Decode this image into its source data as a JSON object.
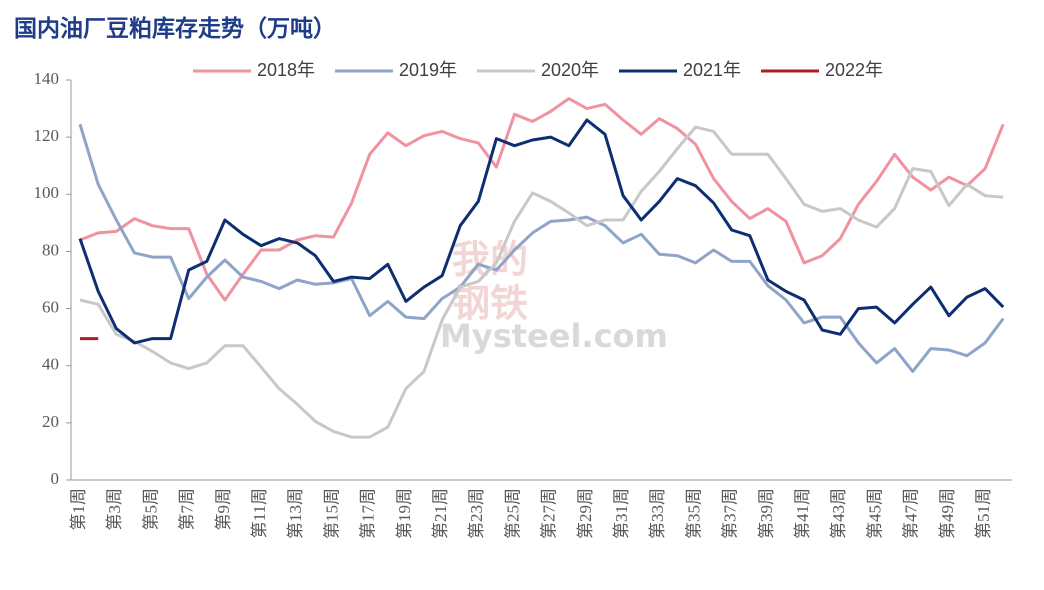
{
  "chart_data": {
    "type": "line",
    "title": "国内油厂豆粕库存走势（万吨）",
    "watermark": [
      "我的",
      "钢铁",
      "Mysteel.com"
    ],
    "categories": [
      "第1周",
      null,
      "第3周",
      null,
      "第5周",
      null,
      "第7周",
      null,
      "第9周",
      null,
      "第11周",
      null,
      "第13周",
      null,
      "第15周",
      null,
      "第17周",
      null,
      "第19周",
      null,
      "第21周",
      null,
      "第23周",
      null,
      "第25周",
      null,
      "第27周",
      null,
      "第29周",
      null,
      "第31周",
      null,
      "第33周",
      null,
      "第35周",
      null,
      "第37周",
      null,
      "第39周",
      null,
      "第41周",
      null,
      "第43周",
      null,
      "第45周",
      null,
      "第47周",
      null,
      "第49周",
      null,
      "第51周",
      null
    ],
    "series": [
      {
        "name": "2018年",
        "color": "#f0929f",
        "values": [
          84,
          86.5,
          87,
          91.5,
          89,
          88,
          88,
          72,
          63,
          72,
          80.5,
          80.5,
          84,
          85.5,
          85,
          97,
          114,
          121.5,
          117,
          120.5,
          122,
          119.5,
          118,
          109.5,
          128,
          125.5,
          129,
          133.5,
          130,
          131.5,
          126,
          121,
          126.5,
          123,
          117.5,
          105.5,
          97.5,
          91.5,
          95,
          90.5,
          76,
          78.5,
          84.5,
          96.5,
          104.5,
          114,
          106,
          101.5,
          106,
          103,
          109,
          124.5
        ]
      },
      {
        "name": "2019年",
        "color": "#8ea4c8",
        "values": [
          124.5,
          103.5,
          91,
          79.5,
          78,
          78,
          63.5,
          71,
          77,
          71,
          69.5,
          67,
          70,
          68.5,
          69,
          70.5,
          57.5,
          62.5,
          57,
          56.5,
          63.5,
          67.5,
          75.5,
          73.5,
          80.5,
          86.5,
          90.5,
          91,
          92,
          89,
          83,
          86,
          79,
          78.5,
          76,
          80.5,
          76.5,
          76.5,
          68,
          63,
          55,
          57,
          57,
          48,
          41,
          46,
          38,
          46,
          45.5,
          43.5,
          48,
          56.5
        ]
      },
      {
        "name": "2020年",
        "color": "#c8c8c8",
        "values": [
          63,
          61.5,
          51,
          48.5,
          45,
          41,
          39,
          41,
          47,
          47,
          39.5,
          32,
          26.5,
          20.5,
          17,
          15,
          15,
          18.5,
          32,
          38,
          56,
          67.5,
          69.5,
          76,
          90.5,
          100.5,
          97.5,
          93.5,
          89,
          91,
          91,
          101,
          108,
          116,
          123.5,
          122,
          114,
          114,
          114,
          105.5,
          96.5,
          94,
          95,
          91,
          88.5,
          95,
          109,
          108,
          96,
          103.5,
          99.5,
          99
        ]
      },
      {
        "name": "2021年",
        "color": "#0d2f72",
        "values": [
          84.5,
          66,
          53,
          48,
          49.5,
          49.5,
          73.5,
          76.5,
          91,
          86,
          82,
          84.5,
          83,
          78.5,
          69.5,
          71,
          70.5,
          75.5,
          62.5,
          67.5,
          71.5,
          89,
          97.5,
          119.5,
          117,
          119,
          120,
          117,
          126,
          121,
          99.5,
          91,
          97.5,
          105.5,
          103,
          97,
          87.5,
          85.5,
          70,
          66,
          63,
          52.5,
          51,
          60,
          60.5,
          55,
          61.5,
          67.5,
          57.5,
          64,
          67,
          60.5
        ]
      },
      {
        "name": "2022年",
        "color": "#b01c24",
        "values": [
          49.5,
          49.5,
          null,
          null,
          null,
          null,
          null,
          null,
          null,
          null,
          null,
          null,
          null,
          null,
          null,
          null,
          null,
          null,
          null,
          null,
          null,
          null,
          null,
          null,
          null,
          null,
          null,
          null,
          null,
          null,
          null,
          null,
          null,
          null,
          null,
          null,
          null,
          null,
          null,
          null,
          null,
          null,
          null,
          null,
          null,
          null,
          null,
          null,
          null,
          null,
          null,
          null
        ]
      }
    ],
    "ylim": [
      0,
      140
    ],
    "yticks": [
      0,
      20,
      40,
      60,
      80,
      100,
      120,
      140
    ],
    "grid": false,
    "legend": "top"
  }
}
